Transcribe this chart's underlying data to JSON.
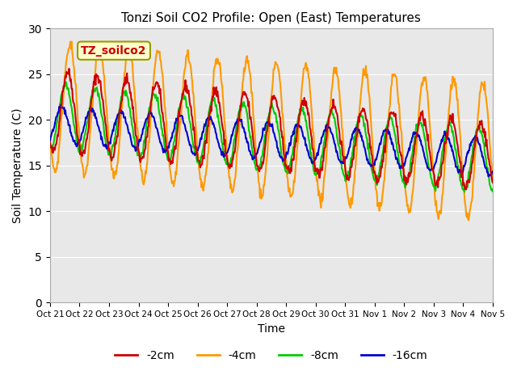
{
  "title": "Tonzi Soil CO2 Profile: Open (East) Temperatures",
  "xlabel": "Time",
  "ylabel": "Soil Temperature (C)",
  "ylim": [
    0,
    30
  ],
  "yticks": [
    0,
    5,
    10,
    15,
    20,
    25,
    30
  ],
  "colors": {
    "-2cm": "#cc0000",
    "-4cm": "#ff9900",
    "-8cm": "#00cc00",
    "-16cm": "#0000cc"
  },
  "legend_label": "TZ_soilco2",
  "background_color": "#e8e8e8",
  "xtick_labels": [
    "Oct 21",
    "Oct 22",
    "Oct 23",
    "Oct 24",
    "Oct 25",
    "Oct 26",
    "Oct 27",
    "Oct 28",
    "Oct 29",
    "Oct 30",
    "Oct 31",
    "Nov 1",
    "Nov 2",
    "Nov 3",
    "Nov 4",
    "Nov 5"
  ],
  "n_days": 15,
  "line_width": 1.5
}
